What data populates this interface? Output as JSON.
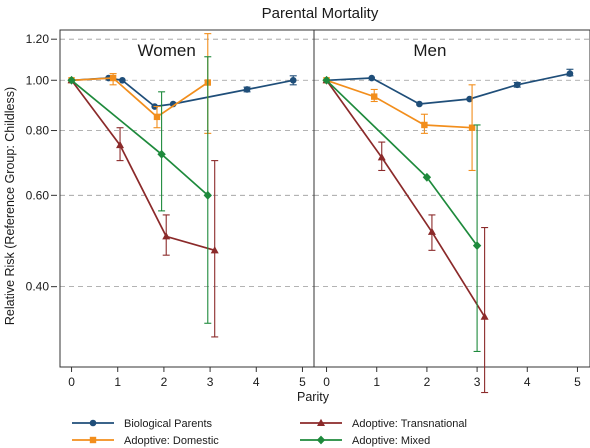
{
  "chart_data": {
    "type": "line",
    "title": "Parental Mortality",
    "xlabel": "Parity",
    "ylabel": "Relative Risk (Reference Group: Childless)",
    "y_scale": "log",
    "ylim": [
      0.28,
      1.25
    ],
    "xlim": [
      -0.25,
      5.25
    ],
    "x_ticks": [
      0,
      1,
      2,
      3,
      4,
      5
    ],
    "y_ticks": [
      0.4,
      0.6,
      0.8,
      1.0,
      1.2
    ],
    "y_tick_labels": [
      "0.40",
      "0.60",
      "0.80",
      "1.00",
      "1.20"
    ],
    "grid": "horizontal dashed",
    "legend_position": "bottom",
    "panels": [
      {
        "name": "Women",
        "series": [
          {
            "name": "Biological Parents",
            "color": "#1f4e79",
            "marker": "circle",
            "x": [
              0,
              0.8,
              1.1,
              1.8,
              2.2,
              3.8,
              4.8
            ],
            "y": [
              1.0,
              1.01,
              1.0,
              0.89,
              0.9,
              0.96,
              1.0
            ],
            "err_low": [
              null,
              null,
              null,
              null,
              null,
              0.95,
              0.98
            ],
            "err_high": [
              null,
              null,
              null,
              null,
              null,
              0.97,
              1.02
            ]
          },
          {
            "name": "Adoptive: Domestic",
            "color": "#f28e1c",
            "marker": "square",
            "x": [
              0,
              0.9,
              1.85,
              2.95
            ],
            "y": [
              1.0,
              1.01,
              0.85,
              0.99
            ],
            "err_low": [
              null,
              0.98,
              0.81,
              0.79
            ],
            "err_high": [
              null,
              1.03,
              0.89,
              1.23
            ]
          },
          {
            "name": "Adoptive: Transnational",
            "color": "#8b2a2a",
            "marker": "triangle",
            "x": [
              0,
              1.05,
              2.05,
              3.1
            ],
            "y": [
              1.0,
              0.75,
              0.5,
              0.47
            ],
            "err_low": [
              null,
              0.7,
              0.46,
              0.32
            ],
            "err_high": [
              null,
              0.81,
              0.55,
              0.7
            ]
          },
          {
            "name": "Adoptive: Mixed",
            "color": "#1e8a3c",
            "marker": "diamond",
            "x": [
              0,
              1.95,
              2.95
            ],
            "y": [
              1.0,
              0.72,
              0.6
            ],
            "err_low": [
              null,
              0.56,
              0.34
            ],
            "err_high": [
              null,
              0.95,
              1.11
            ]
          }
        ]
      },
      {
        "name": "Men",
        "series": [
          {
            "name": "Biological Parents",
            "color": "#1f4e79",
            "marker": "circle",
            "x": [
              0,
              0.9,
              1.85,
              2.85,
              3.8,
              4.85
            ],
            "y": [
              1.0,
              1.01,
              0.9,
              0.92,
              0.98,
              1.03
            ],
            "err_low": [
              null,
              null,
              null,
              null,
              0.97,
              1.02
            ],
            "err_high": [
              null,
              null,
              null,
              null,
              0.99,
              1.05
            ]
          },
          {
            "name": "Adoptive: Domestic",
            "color": "#f28e1c",
            "marker": "square",
            "x": [
              0,
              0.95,
              1.95,
              2.9
            ],
            "y": [
              1.0,
              0.93,
              0.82,
              0.81
            ],
            "err_low": [
              null,
              0.91,
              0.79,
              0.67
            ],
            "err_high": [
              null,
              0.96,
              0.86,
              0.98
            ]
          },
          {
            "name": "Adoptive: Transnational",
            "color": "#8b2a2a",
            "marker": "triangle",
            "x": [
              0,
              1.1,
              2.1,
              3.15
            ],
            "y": [
              1.0,
              0.71,
              0.51,
              0.35
            ],
            "err_low": [
              null,
              0.67,
              0.47,
              0.25
            ],
            "err_high": [
              null,
              0.76,
              0.55,
              0.52
            ]
          },
          {
            "name": "Adoptive: Mixed",
            "color": "#1e8a3c",
            "marker": "diamond",
            "x": [
              0,
              2.0,
              3.0
            ],
            "y": [
              1.0,
              0.65,
              0.48
            ],
            "err_low": [
              null,
              null,
              0.3
            ],
            "err_high": [
              null,
              null,
              0.82
            ]
          }
        ]
      }
    ],
    "legend": [
      {
        "name": "Biological Parents",
        "color": "#1f4e79",
        "marker": "circle"
      },
      {
        "name": "Adoptive: Transnational",
        "color": "#8b2a2a",
        "marker": "triangle"
      },
      {
        "name": "Adoptive: Domestic",
        "color": "#f28e1c",
        "marker": "square"
      },
      {
        "name": "Adoptive: Mixed",
        "color": "#1e8a3c",
        "marker": "diamond"
      }
    ]
  }
}
